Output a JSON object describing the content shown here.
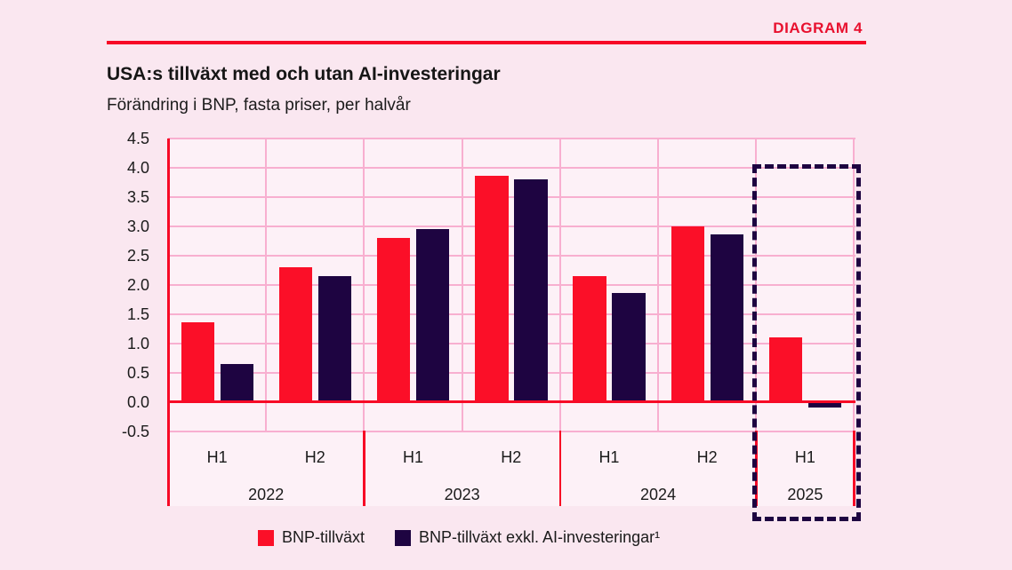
{
  "header": {
    "diagram_label": "DIAGRAM 4"
  },
  "title": "USA:s tillväxt med och utan AI-investeringar",
  "subtitle": "Förändring i BNP, fasta priser, per halvår",
  "colors": {
    "background": "#FAE7F0",
    "plot_background": "#FDF1F7",
    "gridline_pink": "#F8AFD0",
    "axis_red": "#F70A26",
    "bar_red": "#FB0F28",
    "bar_navy": "#1E0441",
    "diagram_label_red": "#E8102E",
    "text_dark": "#1B1B1B"
  },
  "chart_data": {
    "type": "bar",
    "title": "USA:s tillväxt med och utan AI-investeringar",
    "subtitle": "Förändring i BNP, fasta priser, per halvår",
    "ylim": [
      -0.5,
      4.5
    ],
    "ytick_step": 0.5,
    "yticks": [
      "4.5",
      "4.0",
      "3.5",
      "3.0",
      "2.5",
      "2.0",
      "1.5",
      "1.0",
      "0.5",
      "0.0",
      "-0.5"
    ],
    "grid": true,
    "legend_position": "bottom",
    "groups": [
      {
        "year": "2022",
        "halves": [
          "H1",
          "H2"
        ]
      },
      {
        "year": "2023",
        "halves": [
          "H1",
          "H2"
        ]
      },
      {
        "year": "2024",
        "halves": [
          "H1",
          "H2"
        ]
      },
      {
        "year": "2025",
        "halves": [
          "H1"
        ]
      }
    ],
    "categories": [
      "2022 H1",
      "2022 H2",
      "2023 H1",
      "2023 H2",
      "2024 H1",
      "2024 H2",
      "2025 H1"
    ],
    "series": [
      {
        "name": "BNP-tillväxt",
        "color": "#FB0F28",
        "values": [
          1.35,
          2.3,
          2.8,
          3.85,
          2.15,
          3.0,
          1.1
        ]
      },
      {
        "name": "BNP-tillväxt exkl. AI-investeringar¹",
        "color": "#1E0441",
        "values": [
          0.65,
          2.15,
          2.95,
          3.8,
          1.85,
          2.85,
          -0.1
        ]
      }
    ],
    "highlight": {
      "year": "2025",
      "halves": [
        "H1"
      ],
      "style": "dashed-outline",
      "color": "#1E0441"
    }
  },
  "legend": {
    "items": [
      {
        "label": "BNP-tillväxt",
        "color": "#FB0F28"
      },
      {
        "label": "BNP-tillväxt exkl. AI-investeringar¹",
        "color": "#1E0441"
      }
    ]
  }
}
